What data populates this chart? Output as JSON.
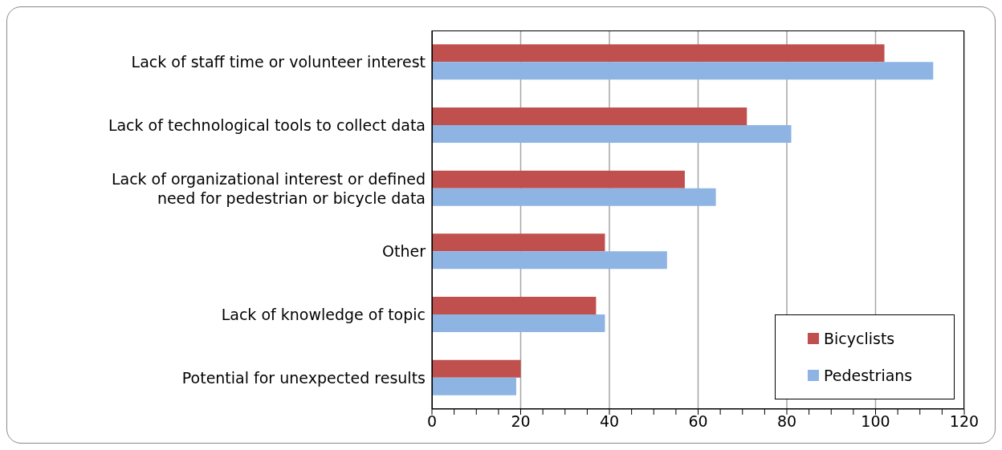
{
  "chart_data": {
    "type": "bar",
    "orientation": "horizontal",
    "categories": [
      "Lack of staff time or volunteer interest",
      "Lack of technological tools to collect data",
      "Lack of organizational interest or defined need for pedestrian or bicycle data",
      "Other",
      "Lack of knowledge of topic",
      "Potential for unexpected results"
    ],
    "series": [
      {
        "name": "Bicyclists",
        "color": "#c0504d",
        "values": [
          102,
          71,
          57,
          39,
          37,
          20
        ]
      },
      {
        "name": "Pedestrians",
        "color": "#8eb4e3",
        "values": [
          113,
          81,
          64,
          53,
          39,
          19
        ]
      }
    ],
    "xlim": [
      0,
      120
    ],
    "xticks": [
      0,
      {
        "value": 5,
        "label": null
      },
      20,
      {
        "value": 10,
        "label": null
      },
      {
        "value": 15,
        "label": null
      },
      {
        "value": 25,
        "label": null
      },
      {
        "value": 30,
        "label": null
      },
      {
        "value": 35,
        "label": null
      },
      40,
      {
        "value": 45,
        "label": null
      },
      {
        "value": 50,
        "label": null
      },
      {
        "value": 55,
        "label": null
      },
      60,
      {
        "value": 65,
        "label": null
      },
      {
        "value": 70,
        "label": null
      },
      {
        "value": 75,
        "label": null
      },
      80,
      {
        "value": 85,
        "label": null
      },
      {
        "value": 90,
        "label": null
      },
      {
        "value": 95,
        "label": null
      },
      100,
      {
        "value": 105,
        "label": null
      },
      {
        "value": 110,
        "label": null
      },
      {
        "value": 115,
        "label": null
      },
      120
    ],
    "grid": "x",
    "legend": "bottom right"
  }
}
